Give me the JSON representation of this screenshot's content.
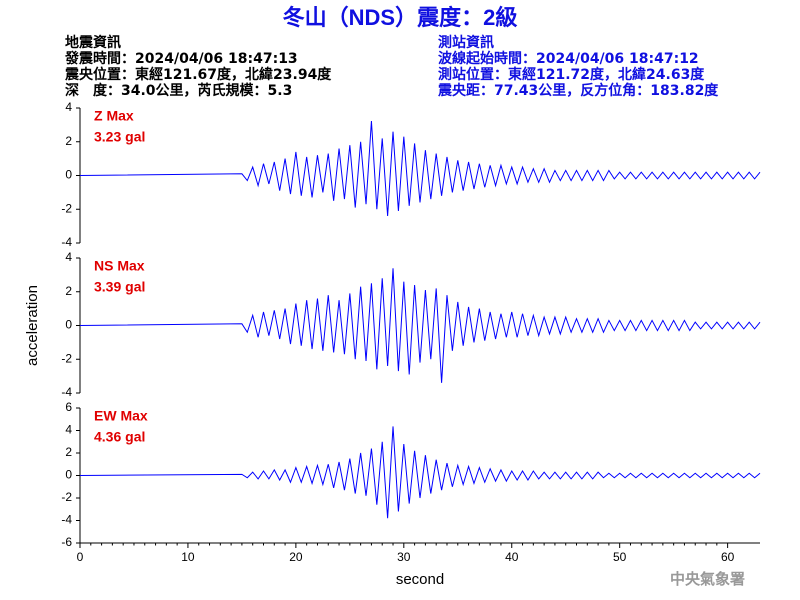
{
  "header": {
    "title": "冬山（NDS）震度：2級",
    "left": [
      "地震資訊",
      "發震時間：2024/04/06 18:47:13",
      "震央位置：東經121.67度，北緯23.94度",
      "深　度：34.0公里，芮氏規模：5.3"
    ],
    "right": [
      "測站資訊",
      "波線起始時間：2024/04/06 18:47:12",
      "測站位置：東經121.72度，北緯24.63度",
      "震央距：77.43公里，反方位角：183.82度"
    ],
    "footer": "中央氣象署"
  },
  "chart_data": [
    {
      "type": "line",
      "label": "Z Max",
      "max_label": "3.23 gal",
      "color": "#0000ff",
      "x": [
        0,
        15,
        15.5,
        16,
        16.5,
        17,
        17.5,
        18,
        18.5,
        19,
        19.5,
        20,
        20.5,
        21,
        21.5,
        22,
        22.5,
        23,
        23.5,
        24,
        24.5,
        25,
        25.5,
        26,
        26.5,
        27,
        27.5,
        28,
        28.5,
        29,
        29.5,
        30,
        30.5,
        31,
        31.5,
        32,
        32.5,
        33,
        33.5,
        34,
        34.5,
        35,
        35.5,
        36,
        36.5,
        37,
        37.5,
        38,
        38.5,
        39,
        39.5,
        40,
        40.5,
        41,
        41.5,
        42,
        42.5,
        43,
        43.5,
        44,
        44.5,
        45,
        45.5,
        46,
        46.5,
        47,
        47.5,
        48,
        48.5,
        49,
        49.5,
        50,
        50.5,
        51,
        51.5,
        52,
        52.5,
        53,
        53.5,
        54,
        54.5,
        55,
        55.5,
        56,
        56.5,
        57,
        57.5,
        58,
        58.5,
        59,
        59.5,
        60,
        60.5,
        61,
        61.5,
        62,
        62.5,
        63
      ],
      "values": [
        0,
        0.1,
        -0.3,
        0.5,
        -0.6,
        0.7,
        -0.5,
        0.8,
        -0.9,
        1.0,
        -1.1,
        1.4,
        -1.2,
        1.1,
        -1.3,
        1.2,
        -1.0,
        1.3,
        -1.5,
        1.6,
        -1.4,
        1.8,
        -1.9,
        2.0,
        -1.7,
        3.23,
        -2.0,
        2.2,
        -2.4,
        2.6,
        -2.1,
        2.3,
        -1.8,
        1.9,
        -1.6,
        1.5,
        -1.4,
        1.3,
        -1.2,
        1.1,
        -1.0,
        0.9,
        -0.9,
        0.8,
        -0.8,
        0.7,
        -0.7,
        0.6,
        -0.6,
        0.6,
        -0.5,
        0.5,
        -0.5,
        0.5,
        -0.4,
        0.4,
        -0.4,
        0.4,
        -0.4,
        0.3,
        -0.3,
        0.3,
        -0.3,
        0.3,
        -0.3,
        0.3,
        -0.3,
        0.3,
        -0.3,
        0.3,
        -0.2,
        0.2,
        -0.2,
        0.2,
        -0.2,
        0.2,
        -0.2,
        0.2,
        -0.2,
        0.2,
        -0.2,
        0.2,
        -0.2,
        0.2,
        -0.2,
        0.2,
        -0.2,
        0.2,
        -0.2,
        0.2,
        -0.2,
        0.2,
        -0.2,
        0.2,
        -0.2,
        0.2,
        -0.2,
        0.2
      ],
      "xlim": [
        0,
        63
      ],
      "ylim": [
        -4,
        4
      ],
      "yticks": [
        -4,
        -2,
        0,
        2,
        4
      ]
    },
    {
      "type": "line",
      "label": "NS Max",
      "max_label": "3.39 gal",
      "color": "#0000ff",
      "y_label": "acceleration",
      "x": [
        0,
        15,
        15.5,
        16,
        16.5,
        17,
        17.5,
        18,
        18.5,
        19,
        19.5,
        20,
        20.5,
        21,
        21.5,
        22,
        22.5,
        23,
        23.5,
        24,
        24.5,
        25,
        25.5,
        26,
        26.5,
        27,
        27.5,
        28,
        28.5,
        29,
        29.5,
        30,
        30.5,
        31,
        31.5,
        32,
        32.5,
        33,
        33.5,
        34,
        34.5,
        35,
        35.5,
        36,
        36.5,
        37,
        37.5,
        38,
        38.5,
        39,
        39.5,
        40,
        40.5,
        41,
        41.5,
        42,
        42.5,
        43,
        43.5,
        44,
        44.5,
        45,
        45.5,
        46,
        46.5,
        47,
        47.5,
        48,
        48.5,
        49,
        49.5,
        50,
        50.5,
        51,
        51.5,
        52,
        52.5,
        53,
        53.5,
        54,
        54.5,
        55,
        55.5,
        56,
        56.5,
        57,
        57.5,
        58,
        58.5,
        59,
        59.5,
        60,
        60.5,
        61,
        61.5,
        62,
        62.5,
        63
      ],
      "values": [
        0,
        0.1,
        -0.4,
        0.6,
        -0.7,
        0.8,
        -0.6,
        0.9,
        -0.8,
        1.0,
        -1.1,
        1.3,
        -1.2,
        1.5,
        -1.4,
        1.6,
        -1.5,
        1.8,
        -1.6,
        1.5,
        -1.7,
        1.9,
        -2.0,
        2.3,
        -2.1,
        2.5,
        -2.6,
        2.8,
        -2.4,
        3.39,
        -2.7,
        2.6,
        -2.9,
        2.4,
        -2.2,
        2.1,
        -2.0,
        2.2,
        -3.4,
        1.8,
        -1.5,
        1.4,
        -1.2,
        1.1,
        -1.0,
        1.0,
        -0.9,
        0.8,
        -0.8,
        0.7,
        -0.7,
        0.8,
        -0.7,
        0.7,
        -0.6,
        0.6,
        -0.6,
        0.5,
        -0.5,
        0.5,
        -0.5,
        0.5,
        -0.4,
        0.4,
        -0.4,
        0.4,
        -0.4,
        0.4,
        -0.4,
        0.3,
        -0.3,
        0.3,
        -0.3,
        0.3,
        -0.3,
        0.3,
        -0.3,
        0.3,
        -0.3,
        0.3,
        -0.3,
        0.3,
        -0.3,
        0.3,
        -0.3,
        0.2,
        -0.2,
        0.2,
        -0.2,
        0.2,
        -0.2,
        0.2,
        -0.2,
        0.2,
        -0.2,
        0.2,
        -0.2,
        0.2
      ],
      "xlim": [
        0,
        63
      ],
      "ylim": [
        -4,
        4
      ],
      "yticks": [
        -4,
        -2,
        0,
        2,
        4
      ]
    },
    {
      "type": "line",
      "label": "EW Max",
      "max_label": "4.36 gal",
      "color": "#0000ff",
      "x_label": "second",
      "x": [
        0,
        15,
        15.5,
        16,
        16.5,
        17,
        17.5,
        18,
        18.5,
        19,
        19.5,
        20,
        20.5,
        21,
        21.5,
        22,
        22.5,
        23,
        23.5,
        24,
        24.5,
        25,
        25.5,
        26,
        26.5,
        27,
        27.5,
        28,
        28.5,
        29,
        29.5,
        30,
        30.5,
        31,
        31.5,
        32,
        32.5,
        33,
        33.5,
        34,
        34.5,
        35,
        35.5,
        36,
        36.5,
        37,
        37.5,
        38,
        38.5,
        39,
        39.5,
        40,
        40.5,
        41,
        41.5,
        42,
        42.5,
        43,
        43.5,
        44,
        44.5,
        45,
        45.5,
        46,
        46.5,
        47,
        47.5,
        48,
        48.5,
        49,
        49.5,
        50,
        50.5,
        51,
        51.5,
        52,
        52.5,
        53,
        53.5,
        54,
        54.5,
        55,
        55.5,
        56,
        56.5,
        57,
        57.5,
        58,
        58.5,
        59,
        59.5,
        60,
        60.5,
        61,
        61.5,
        62,
        62.5,
        63
      ],
      "values": [
        0,
        0.1,
        -0.2,
        0.3,
        -0.3,
        0.4,
        -0.3,
        0.5,
        -0.4,
        0.5,
        -0.6,
        0.7,
        -0.6,
        0.8,
        -0.7,
        0.9,
        -0.8,
        1.0,
        -1.1,
        1.2,
        -1.3,
        1.5,
        -1.6,
        2.0,
        -1.8,
        2.4,
        -2.6,
        3.0,
        -3.8,
        4.36,
        -3.2,
        2.8,
        -2.5,
        2.2,
        -2.0,
        1.8,
        -1.6,
        1.4,
        -1.3,
        1.1,
        -1.0,
        0.9,
        -0.8,
        0.8,
        -0.7,
        0.7,
        -0.6,
        0.6,
        -0.5,
        0.5,
        -0.5,
        0.4,
        -0.4,
        0.4,
        -0.4,
        0.4,
        -0.3,
        0.3,
        -0.3,
        0.3,
        -0.3,
        0.3,
        -0.3,
        0.3,
        -0.3,
        0.3,
        -0.3,
        0.3,
        -0.2,
        0.2,
        -0.2,
        0.2,
        -0.2,
        0.2,
        -0.2,
        0.2,
        -0.2,
        0.2,
        -0.2,
        0.2,
        -0.2,
        0.2,
        -0.2,
        0.2,
        -0.2,
        0.2,
        -0.2,
        0.2,
        -0.2,
        0.2,
        -0.2,
        0.2,
        -0.2,
        0.2,
        -0.2,
        0.2,
        -0.2,
        0.2
      ],
      "xlim": [
        0,
        63
      ],
      "ylim": [
        -6,
        6
      ],
      "yticks": [
        -6,
        -4,
        -2,
        0,
        2,
        4,
        6
      ],
      "xticks": [
        0,
        10,
        20,
        30,
        40,
        50,
        60
      ]
    }
  ]
}
